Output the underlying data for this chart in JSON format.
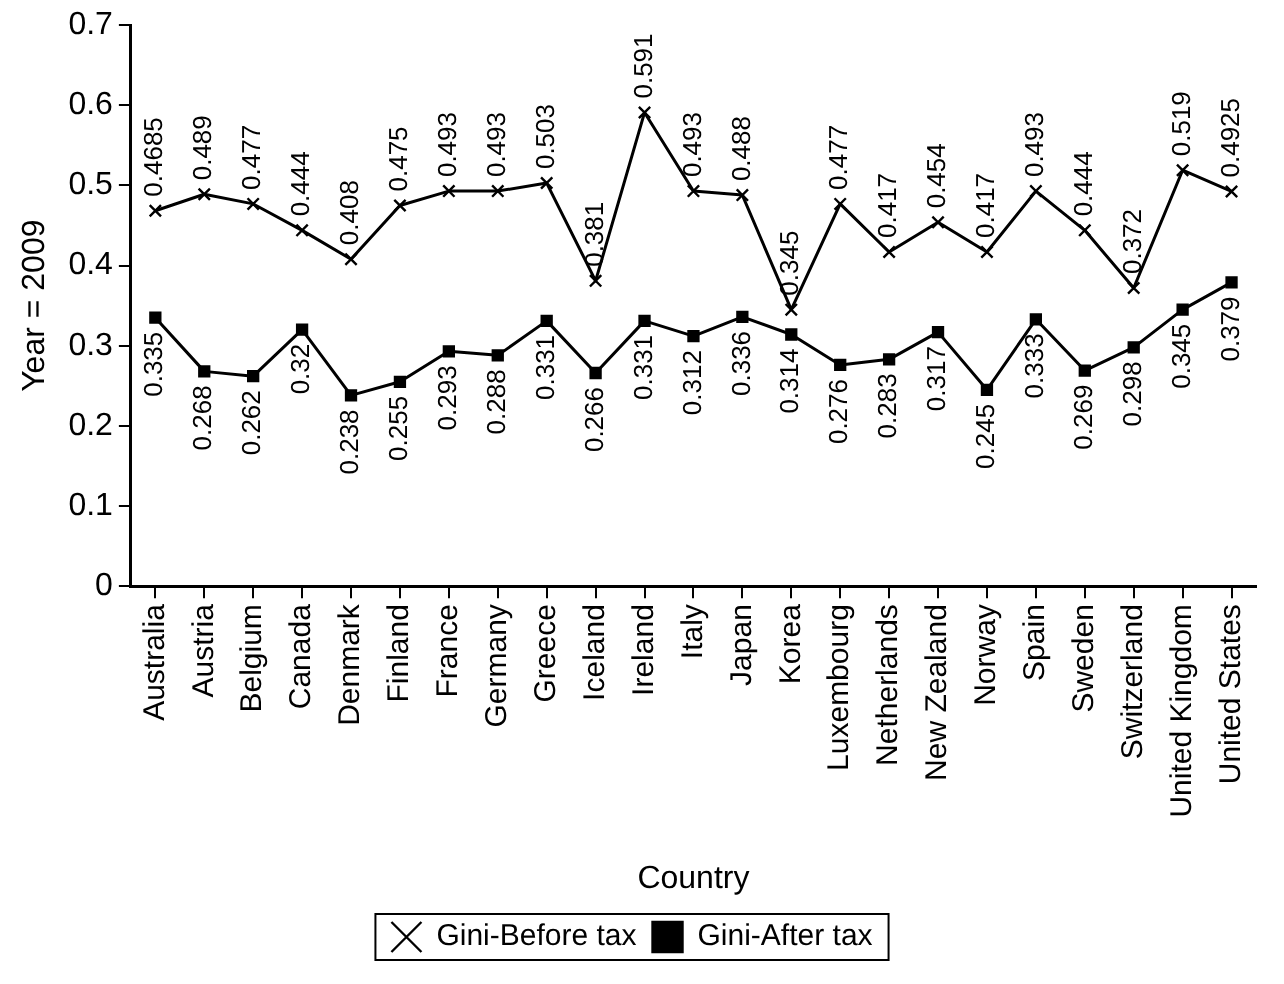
{
  "chart_data": {
    "type": "line",
    "xlabel": "Country",
    "ylabel": "Year = 2009",
    "categories": [
      "Australia",
      "Austria",
      "Belgium",
      "Canada",
      "Denmark",
      "Finland",
      "France",
      "Germany",
      "Greece",
      "Iceland",
      "Ireland",
      "Italy",
      "Japan",
      "Korea",
      "Luxembourg",
      "Netherlands",
      "New Zealand",
      "Norway",
      "Spain",
      "Sweden",
      "Switzerland",
      "United Kingdom",
      "United States"
    ],
    "series": [
      {
        "name": "Gini-Before tax",
        "color": "#000000",
        "marker": "cross",
        "values": [
          0.4685,
          0.489,
          0.477,
          0.444,
          0.408,
          0.475,
          0.493,
          0.493,
          0.503,
          0.381,
          0.591,
          0.493,
          0.488,
          0.345,
          0.477,
          0.417,
          0.454,
          0.417,
          0.493,
          0.444,
          0.372,
          0.519,
          0.4925
        ]
      },
      {
        "name": "Gini-After tax",
        "color": "#000000",
        "marker": "square",
        "values": [
          0.335,
          0.268,
          0.262,
          0.32,
          0.238,
          0.255,
          0.293,
          0.288,
          0.331,
          0.266,
          0.331,
          0.312,
          0.336,
          0.314,
          0.276,
          0.283,
          0.317,
          0.245,
          0.333,
          0.269,
          0.298,
          0.345,
          0.379
        ]
      }
    ],
    "ylim": [
      0,
      0.7
    ],
    "yticks": [
      0,
      0.1,
      0.2,
      0.3,
      0.4,
      0.5,
      0.6,
      0.7
    ],
    "data_labels": true,
    "legend": "bottom",
    "line_style": "solid"
  }
}
